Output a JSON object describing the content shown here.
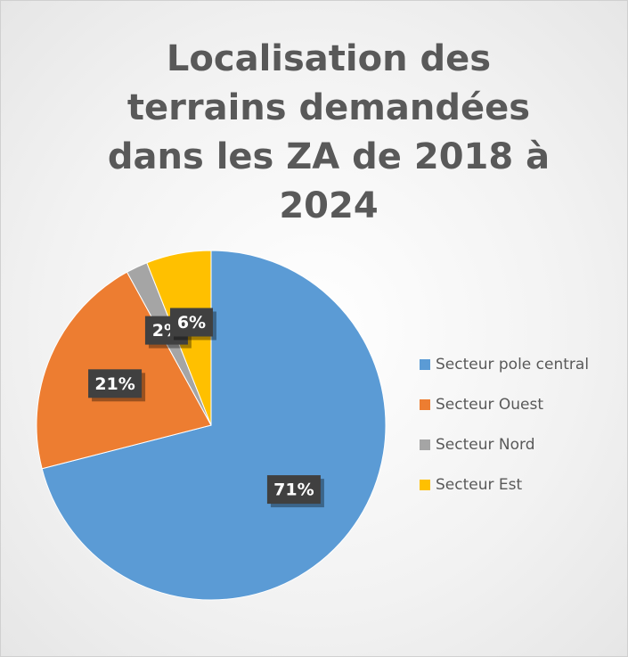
{
  "chart_data": {
    "type": "pie",
    "title": "Localisation des terrains demandées dans les ZA de 2018 à 2024",
    "categories": [
      "Secteur pole central",
      "Secteur Ouest",
      "Secteur Nord",
      "Secteur Est"
    ],
    "values": [
      71,
      21,
      2,
      6
    ],
    "value_labels": [
      "71%",
      "21%",
      "2%",
      "6%"
    ],
    "colors": [
      "#5b9bd5",
      "#ed7d31",
      "#a5a5a5",
      "#ffc000"
    ],
    "legend": "right"
  }
}
